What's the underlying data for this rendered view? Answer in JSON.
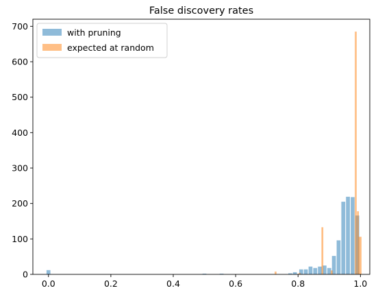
{
  "chart_data": {
    "type": "bar",
    "title": "False discovery rates",
    "xlabel": "",
    "ylabel": "",
    "xlim": [
      -0.05,
      1.03
    ],
    "ylim": [
      0,
      720
    ],
    "xticks": [
      0.0,
      0.2,
      0.4,
      0.6,
      0.8,
      1.0
    ],
    "xtick_labels": [
      "0.0",
      "0.2",
      "0.4",
      "0.6",
      "0.8",
      "1.0"
    ],
    "yticks": [
      0,
      100,
      200,
      300,
      400,
      500,
      600,
      700
    ],
    "ytick_labels": [
      "0",
      "100",
      "200",
      "300",
      "400",
      "500",
      "600",
      "700"
    ],
    "grid": false,
    "legend_position": "top-left",
    "series": [
      {
        "name": "with pruning",
        "color": "#1f77b4",
        "opacity": 0.5,
        "bar_width": 0.0125,
        "x": [
          0.0,
          0.5,
          0.555,
          0.775,
          0.79,
          0.81,
          0.825,
          0.84,
          0.855,
          0.87,
          0.885,
          0.9,
          0.915,
          0.93,
          0.945,
          0.96,
          0.975,
          0.99
        ],
        "values": [
          12,
          2,
          2,
          3,
          6,
          14,
          14,
          22,
          18,
          22,
          25,
          18,
          52,
          96,
          205,
          219,
          218,
          166
        ]
      },
      {
        "name": "expected at random",
        "color": "#ff7f0e",
        "opacity": 0.5,
        "bar_width": 0.006,
        "x": [
          0.728,
          0.805,
          0.878,
          0.908,
          0.985,
          0.992
        ],
        "values": [
          8,
          4,
          133,
          11,
          685,
          178
        ]
      },
      {
        "name": "",
        "color": "#ff7f0e",
        "opacity": 0.5,
        "bar_width": 0.009,
        "x": [
          0.999
        ],
        "values": [
          106
        ]
      }
    ]
  }
}
